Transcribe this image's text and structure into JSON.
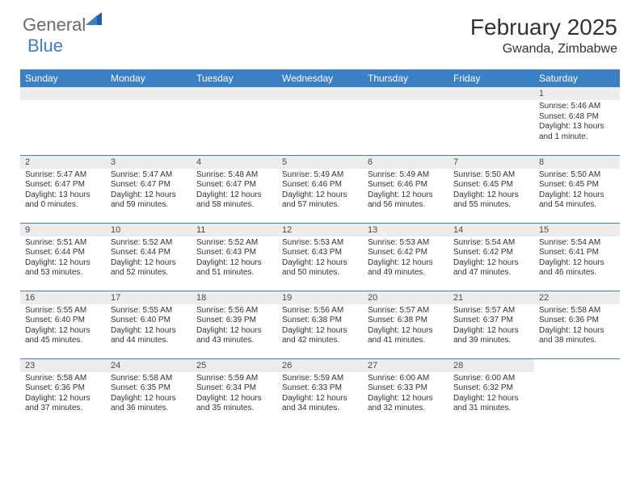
{
  "brand": {
    "part1": "General",
    "part2": "Blue"
  },
  "title": "February 2025",
  "location": "Gwanda, Zimbabwe",
  "day_headers": [
    "Sunday",
    "Monday",
    "Tuesday",
    "Wednesday",
    "Thursday",
    "Friday",
    "Saturday"
  ],
  "colors": {
    "header_bg": "#3b7fc4",
    "header_text": "#ffffff",
    "daynum_bg": "#ededed",
    "row_border": "#3b7fc4",
    "body_text": "#333333",
    "logo_gray": "#6a6a6a",
    "logo_blue": "#3b7fc4",
    "page_bg": "#ffffff"
  },
  "weeks": [
    [
      {
        "n": "",
        "sunrise": "",
        "sunset": "",
        "daylight": ""
      },
      {
        "n": "",
        "sunrise": "",
        "sunset": "",
        "daylight": ""
      },
      {
        "n": "",
        "sunrise": "",
        "sunset": "",
        "daylight": ""
      },
      {
        "n": "",
        "sunrise": "",
        "sunset": "",
        "daylight": ""
      },
      {
        "n": "",
        "sunrise": "",
        "sunset": "",
        "daylight": ""
      },
      {
        "n": "",
        "sunrise": "",
        "sunset": "",
        "daylight": ""
      },
      {
        "n": "1",
        "sunrise": "Sunrise: 5:46 AM",
        "sunset": "Sunset: 6:48 PM",
        "daylight": "Daylight: 13 hours and 1 minute."
      }
    ],
    [
      {
        "n": "2",
        "sunrise": "Sunrise: 5:47 AM",
        "sunset": "Sunset: 6:47 PM",
        "daylight": "Daylight: 13 hours and 0 minutes."
      },
      {
        "n": "3",
        "sunrise": "Sunrise: 5:47 AM",
        "sunset": "Sunset: 6:47 PM",
        "daylight": "Daylight: 12 hours and 59 minutes."
      },
      {
        "n": "4",
        "sunrise": "Sunrise: 5:48 AM",
        "sunset": "Sunset: 6:47 PM",
        "daylight": "Daylight: 12 hours and 58 minutes."
      },
      {
        "n": "5",
        "sunrise": "Sunrise: 5:49 AM",
        "sunset": "Sunset: 6:46 PM",
        "daylight": "Daylight: 12 hours and 57 minutes."
      },
      {
        "n": "6",
        "sunrise": "Sunrise: 5:49 AM",
        "sunset": "Sunset: 6:46 PM",
        "daylight": "Daylight: 12 hours and 56 minutes."
      },
      {
        "n": "7",
        "sunrise": "Sunrise: 5:50 AM",
        "sunset": "Sunset: 6:45 PM",
        "daylight": "Daylight: 12 hours and 55 minutes."
      },
      {
        "n": "8",
        "sunrise": "Sunrise: 5:50 AM",
        "sunset": "Sunset: 6:45 PM",
        "daylight": "Daylight: 12 hours and 54 minutes."
      }
    ],
    [
      {
        "n": "9",
        "sunrise": "Sunrise: 5:51 AM",
        "sunset": "Sunset: 6:44 PM",
        "daylight": "Daylight: 12 hours and 53 minutes."
      },
      {
        "n": "10",
        "sunrise": "Sunrise: 5:52 AM",
        "sunset": "Sunset: 6:44 PM",
        "daylight": "Daylight: 12 hours and 52 minutes."
      },
      {
        "n": "11",
        "sunrise": "Sunrise: 5:52 AM",
        "sunset": "Sunset: 6:43 PM",
        "daylight": "Daylight: 12 hours and 51 minutes."
      },
      {
        "n": "12",
        "sunrise": "Sunrise: 5:53 AM",
        "sunset": "Sunset: 6:43 PM",
        "daylight": "Daylight: 12 hours and 50 minutes."
      },
      {
        "n": "13",
        "sunrise": "Sunrise: 5:53 AM",
        "sunset": "Sunset: 6:42 PM",
        "daylight": "Daylight: 12 hours and 49 minutes."
      },
      {
        "n": "14",
        "sunrise": "Sunrise: 5:54 AM",
        "sunset": "Sunset: 6:42 PM",
        "daylight": "Daylight: 12 hours and 47 minutes."
      },
      {
        "n": "15",
        "sunrise": "Sunrise: 5:54 AM",
        "sunset": "Sunset: 6:41 PM",
        "daylight": "Daylight: 12 hours and 46 minutes."
      }
    ],
    [
      {
        "n": "16",
        "sunrise": "Sunrise: 5:55 AM",
        "sunset": "Sunset: 6:40 PM",
        "daylight": "Daylight: 12 hours and 45 minutes."
      },
      {
        "n": "17",
        "sunrise": "Sunrise: 5:55 AM",
        "sunset": "Sunset: 6:40 PM",
        "daylight": "Daylight: 12 hours and 44 minutes."
      },
      {
        "n": "18",
        "sunrise": "Sunrise: 5:56 AM",
        "sunset": "Sunset: 6:39 PM",
        "daylight": "Daylight: 12 hours and 43 minutes."
      },
      {
        "n": "19",
        "sunrise": "Sunrise: 5:56 AM",
        "sunset": "Sunset: 6:38 PM",
        "daylight": "Daylight: 12 hours and 42 minutes."
      },
      {
        "n": "20",
        "sunrise": "Sunrise: 5:57 AM",
        "sunset": "Sunset: 6:38 PM",
        "daylight": "Daylight: 12 hours and 41 minutes."
      },
      {
        "n": "21",
        "sunrise": "Sunrise: 5:57 AM",
        "sunset": "Sunset: 6:37 PM",
        "daylight": "Daylight: 12 hours and 39 minutes."
      },
      {
        "n": "22",
        "sunrise": "Sunrise: 5:58 AM",
        "sunset": "Sunset: 6:36 PM",
        "daylight": "Daylight: 12 hours and 38 minutes."
      }
    ],
    [
      {
        "n": "23",
        "sunrise": "Sunrise: 5:58 AM",
        "sunset": "Sunset: 6:36 PM",
        "daylight": "Daylight: 12 hours and 37 minutes."
      },
      {
        "n": "24",
        "sunrise": "Sunrise: 5:58 AM",
        "sunset": "Sunset: 6:35 PM",
        "daylight": "Daylight: 12 hours and 36 minutes."
      },
      {
        "n": "25",
        "sunrise": "Sunrise: 5:59 AM",
        "sunset": "Sunset: 6:34 PM",
        "daylight": "Daylight: 12 hours and 35 minutes."
      },
      {
        "n": "26",
        "sunrise": "Sunrise: 5:59 AM",
        "sunset": "Sunset: 6:33 PM",
        "daylight": "Daylight: 12 hours and 34 minutes."
      },
      {
        "n": "27",
        "sunrise": "Sunrise: 6:00 AM",
        "sunset": "Sunset: 6:33 PM",
        "daylight": "Daylight: 12 hours and 32 minutes."
      },
      {
        "n": "28",
        "sunrise": "Sunrise: 6:00 AM",
        "sunset": "Sunset: 6:32 PM",
        "daylight": "Daylight: 12 hours and 31 minutes."
      },
      {
        "n": "",
        "sunrise": "",
        "sunset": "",
        "daylight": ""
      }
    ]
  ]
}
